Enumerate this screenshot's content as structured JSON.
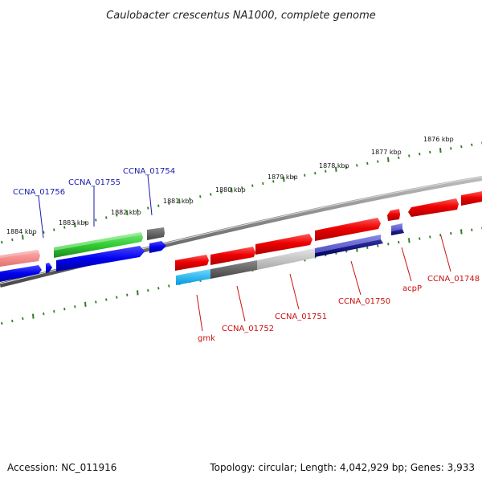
{
  "title": "Caulobacter crescentus NA1000, complete genome",
  "footer": {
    "accession": "Accession: NC_011916",
    "topology": "Topology: circular; Length: 4,042,929 bp; Genes: 3,933"
  },
  "colors": {
    "tick": "#2e7d1e",
    "backbone": "#777777",
    "top_label": "#1a1aaa",
    "bottom_label": "#cc1111"
  },
  "kbp_labels": [
    "1884 kbp",
    "1883 kbp",
    "1882 kbp",
    "1881 kbp",
    "1880 kbp",
    "1879 kbp",
    "1878 kbp",
    "1877 kbp",
    "1876 kbp"
  ],
  "top_gene_labels": [
    "CCNA_01756",
    "CCNA_01755",
    "CCNA_01754"
  ],
  "bottom_gene_labels": [
    "gmk",
    "CCNA_01752",
    "CCNA_01751",
    "CCNA_01750",
    "acpP",
    "CCNA_01748"
  ]
}
